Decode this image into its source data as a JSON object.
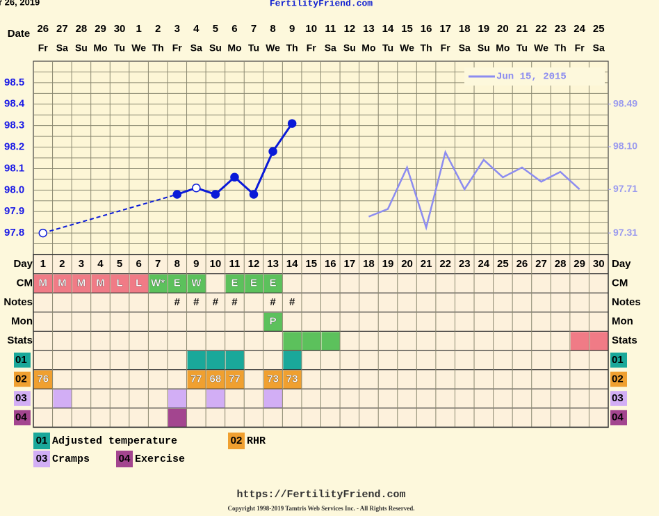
{
  "header": {
    "date_fragment": "r 26, 2019",
    "site": "FertilityFriend.com"
  },
  "chart_data": {
    "type": "line",
    "date_label": "Date",
    "dates": [
      26,
      27,
      28,
      29,
      30,
      1,
      2,
      3,
      4,
      5,
      6,
      7,
      8,
      9,
      10,
      11,
      12,
      13,
      14,
      15,
      16,
      17,
      18,
      19,
      20,
      21,
      22,
      23,
      24,
      25
    ],
    "weekdays": [
      "Fr",
      "Sa",
      "Su",
      "Mo",
      "Tu",
      "We",
      "Th",
      "Fr",
      "Sa",
      "Su",
      "Mo",
      "Tu",
      "We",
      "Th",
      "Fr",
      "Sa",
      "Su",
      "Mo",
      "Tu",
      "We",
      "Th",
      "Fr",
      "Sa",
      "Su",
      "Mo",
      "Tu",
      "We",
      "Th",
      "Fr",
      "Sa"
    ],
    "day_label": "Day",
    "categories": [
      1,
      2,
      3,
      4,
      5,
      6,
      7,
      8,
      9,
      10,
      11,
      12,
      13,
      14,
      15,
      16,
      17,
      18,
      19,
      20,
      21,
      22,
      23,
      24,
      25,
      26,
      27,
      28,
      29,
      30
    ],
    "ylim": [
      97.7,
      98.6
    ],
    "yticks": [
      97.8,
      97.9,
      {
        "value": 98,
        "label": "98.0"
      },
      98.1,
      98.2,
      98.3,
      98.4,
      98.5
    ],
    "y2lim": [
      97.113,
      98.883
    ],
    "y2ticks": [
      97.31,
      97.71,
      {
        "value": 98.1,
        "label": "98.10"
      },
      98.49
    ],
    "grid": true,
    "legend": "top-right",
    "series": [
      {
        "color": "#0a1ad8",
        "values": [
          97.8,
          null,
          null,
          null,
          null,
          null,
          null,
          97.98,
          98.01,
          97.98,
          98.06,
          97.98,
          98.18,
          98.31,
          null,
          null,
          null,
          null,
          null,
          null,
          null,
          null,
          null,
          null,
          null,
          null,
          null,
          null,
          null,
          null
        ],
        "hollow": [
          true,
          false,
          false,
          false,
          false,
          false,
          false,
          false,
          true,
          false,
          false,
          false,
          false,
          false,
          false,
          false,
          false,
          false,
          false,
          false,
          false,
          false,
          false,
          false,
          false,
          false,
          false,
          false,
          false,
          false
        ]
      },
      {
        "name": "Jun 15, 2015",
        "color": "#8c8cf0",
        "axis": "y2",
        "values": [
          null,
          null,
          null,
          null,
          null,
          null,
          null,
          null,
          null,
          null,
          null,
          null,
          null,
          null,
          null,
          null,
          null,
          97.46,
          97.53,
          97.91,
          97.36,
          98.05,
          97.71,
          97.98,
          97.82,
          97.91,
          97.78,
          97.87,
          97.71,
          null
        ]
      }
    ]
  },
  "table": {
    "rows": [
      {
        "label": "CM",
        "cells": [
          {
            "text": "M",
            "color": "#f07b86"
          },
          {
            "text": "M",
            "color": "#f07b86"
          },
          {
            "text": "M",
            "color": "#f07b86"
          },
          {
            "text": "M",
            "color": "#f07b86"
          },
          {
            "text": "L",
            "color": "#f07b86"
          },
          {
            "text": "L",
            "color": "#f07b86"
          },
          {
            "text": "W*",
            "color": "#5cc15c"
          },
          {
            "text": "E",
            "color": "#5cc15c"
          },
          {
            "text": "W",
            "color": "#5cc15c"
          },
          null,
          {
            "text": "E",
            "color": "#5cc15c"
          },
          {
            "text": "E",
            "color": "#5cc15c"
          },
          {
            "text": "E",
            "color": "#5cc15c"
          },
          null,
          null,
          null,
          null,
          null,
          null,
          null,
          null,
          null,
          null,
          null,
          null,
          null,
          null,
          null,
          null,
          null
        ]
      },
      {
        "label": "Notes",
        "cells": [
          null,
          null,
          null,
          null,
          null,
          null,
          null,
          {
            "text": "#"
          },
          {
            "text": "#"
          },
          {
            "text": "#"
          },
          {
            "text": "#"
          },
          null,
          {
            "text": "#"
          },
          {
            "text": "#"
          },
          null,
          null,
          null,
          null,
          null,
          null,
          null,
          null,
          null,
          null,
          null,
          null,
          null,
          null,
          null,
          null
        ]
      },
      {
        "label": "Mon",
        "cells": [
          null,
          null,
          null,
          null,
          null,
          null,
          null,
          null,
          null,
          null,
          null,
          null,
          {
            "text": "P",
            "color": "#5cc15c"
          },
          null,
          null,
          null,
          null,
          null,
          null,
          null,
          null,
          null,
          null,
          null,
          null,
          null,
          null,
          null,
          null,
          null
        ]
      },
      {
        "label": "Stats",
        "cells": [
          null,
          null,
          null,
          null,
          null,
          null,
          null,
          null,
          null,
          null,
          null,
          null,
          null,
          {
            "color": "#5cc15c"
          },
          {
            "color": "#5cc15c"
          },
          {
            "color": "#5cc15c"
          },
          null,
          null,
          null,
          null,
          null,
          null,
          null,
          null,
          null,
          null,
          null,
          null,
          {
            "color": "#f07b86"
          },
          {
            "color": "#f07b86"
          }
        ]
      },
      {
        "label": "01",
        "label_color": "#1aa89a",
        "cells": [
          null,
          null,
          null,
          null,
          null,
          null,
          null,
          null,
          {
            "color": "#1aa89a"
          },
          {
            "color": "#1aa89a"
          },
          {
            "color": "#1aa89a"
          },
          null,
          null,
          {
            "color": "#1aa89a"
          },
          null,
          null,
          null,
          null,
          null,
          null,
          null,
          null,
          null,
          null,
          null,
          null,
          null,
          null,
          null,
          null
        ]
      },
      {
        "label": "02",
        "label_color": "#f0a030",
        "cells": [
          {
            "text": 76,
            "color": "#f0a030"
          },
          null,
          null,
          null,
          null,
          null,
          null,
          null,
          {
            "text": 77,
            "color": "#f0a030"
          },
          {
            "text": 68,
            "color": "#f0a030"
          },
          {
            "text": 77,
            "color": "#f0a030"
          },
          null,
          {
            "text": 73,
            "color": "#f0a030"
          },
          {
            "text": 73,
            "color": "#f0a030"
          },
          null,
          null,
          null,
          null,
          null,
          null,
          null,
          null,
          null,
          null,
          null,
          null,
          null,
          null,
          null,
          null
        ]
      },
      {
        "label": "03",
        "label_color": "#d2aef5",
        "cells": [
          null,
          {
            "color": "#d2aef5"
          },
          null,
          null,
          null,
          null,
          null,
          {
            "color": "#d2aef5"
          },
          null,
          {
            "color": "#d2aef5"
          },
          null,
          null,
          {
            "color": "#d2aef5"
          },
          null,
          null,
          null,
          null,
          null,
          null,
          null,
          null,
          null,
          null,
          null,
          null,
          null,
          null,
          null,
          null,
          null
        ]
      },
      {
        "label": "04",
        "label_color": "#a3458f",
        "cells": [
          null,
          null,
          null,
          null,
          null,
          null,
          null,
          {
            "color": "#a3458f"
          },
          null,
          null,
          null,
          null,
          null,
          null,
          null,
          null,
          null,
          null,
          null,
          null,
          null,
          null,
          null,
          null,
          null,
          null,
          null,
          null,
          null,
          null
        ]
      }
    ]
  },
  "key": [
    {
      "code": "01",
      "text": "Adjusted temperature",
      "color": "#1aa89a"
    },
    {
      "code": "02",
      "text": "RHR",
      "color": "#f0a030"
    },
    {
      "code": "03",
      "text": "Cramps",
      "color": "#d2aef5"
    },
    {
      "code": "04",
      "text": "Exercise",
      "color": "#a3458f"
    }
  ],
  "footer": {
    "url": "https://FertilityFriend.com",
    "copyright": "Copyright 1998-2019 Tamtris Web Services Inc. - All Rights Reserved."
  }
}
